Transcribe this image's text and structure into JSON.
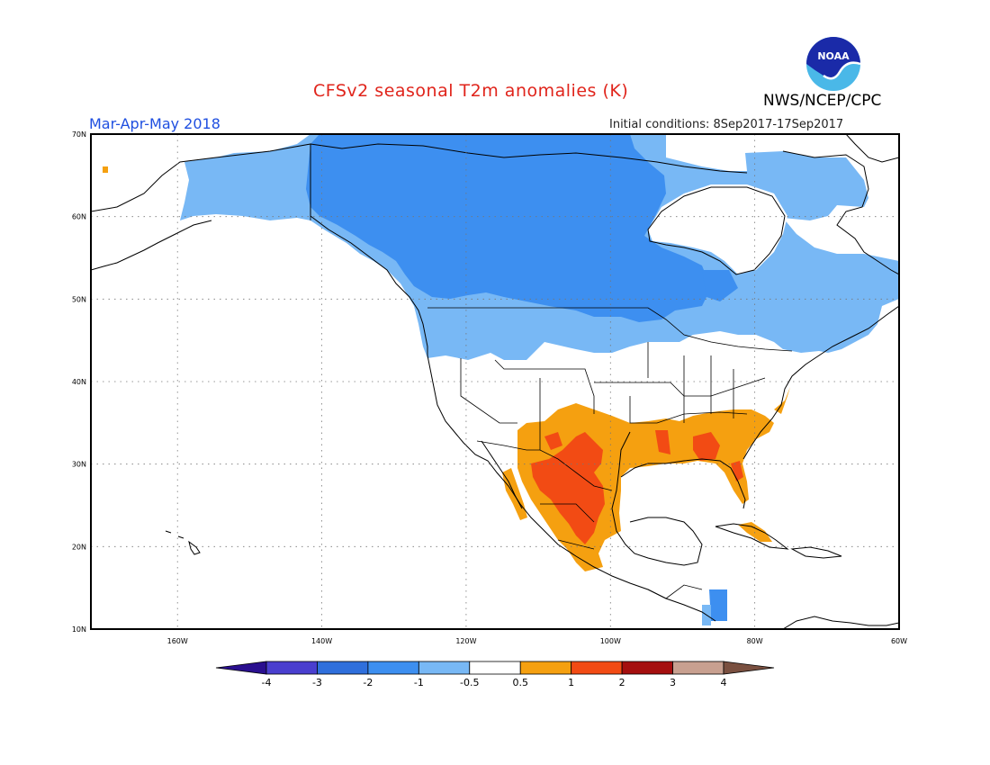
{
  "header": {
    "title": "CFSv2 seasonal T2m anomalies (K)",
    "agency": "NWS/NCEP/CPC",
    "period": "Mar-Apr-May 2018",
    "initial_conditions": "Initial conditions: 8Sep2017-17Sep2017"
  },
  "logo": {
    "name": "noaa-logo",
    "text": "NOAA"
  },
  "map": {
    "projection": "cylindrical",
    "lon_range": [
      -172,
      -60
    ],
    "lat_range": [
      10,
      70
    ],
    "grid_dotted": true,
    "lat_ticks": [
      {
        "value": 10,
        "label": "10N"
      },
      {
        "value": 20,
        "label": "20N"
      },
      {
        "value": 30,
        "label": "30N"
      },
      {
        "value": 40,
        "label": "40N"
      },
      {
        "value": 50,
        "label": "50N"
      },
      {
        "value": 60,
        "label": "60N"
      },
      {
        "value": 70,
        "label": "70N"
      }
    ],
    "lon_ticks": [
      {
        "value": -160,
        "label": "160W"
      },
      {
        "value": -140,
        "label": "140W"
      },
      {
        "value": -120,
        "label": "120W"
      },
      {
        "value": -100,
        "label": "100W"
      },
      {
        "value": -80,
        "label": "80W"
      },
      {
        "value": -60,
        "label": "60W"
      }
    ]
  },
  "colorbar": {
    "colors": [
      "#2a0f8f",
      "#4a3fcf",
      "#2f6fdc",
      "#3d8ff0",
      "#78b8f5",
      "#ffffff",
      "#f5a010",
      "#f24b14",
      "#a50f0f",
      "#c8a090",
      "#7a5040"
    ],
    "tick_labels": [
      "-4",
      "-3",
      "-2",
      "-1",
      "-0.5",
      "0.5",
      "1",
      "2",
      "3",
      "4"
    ]
  }
}
